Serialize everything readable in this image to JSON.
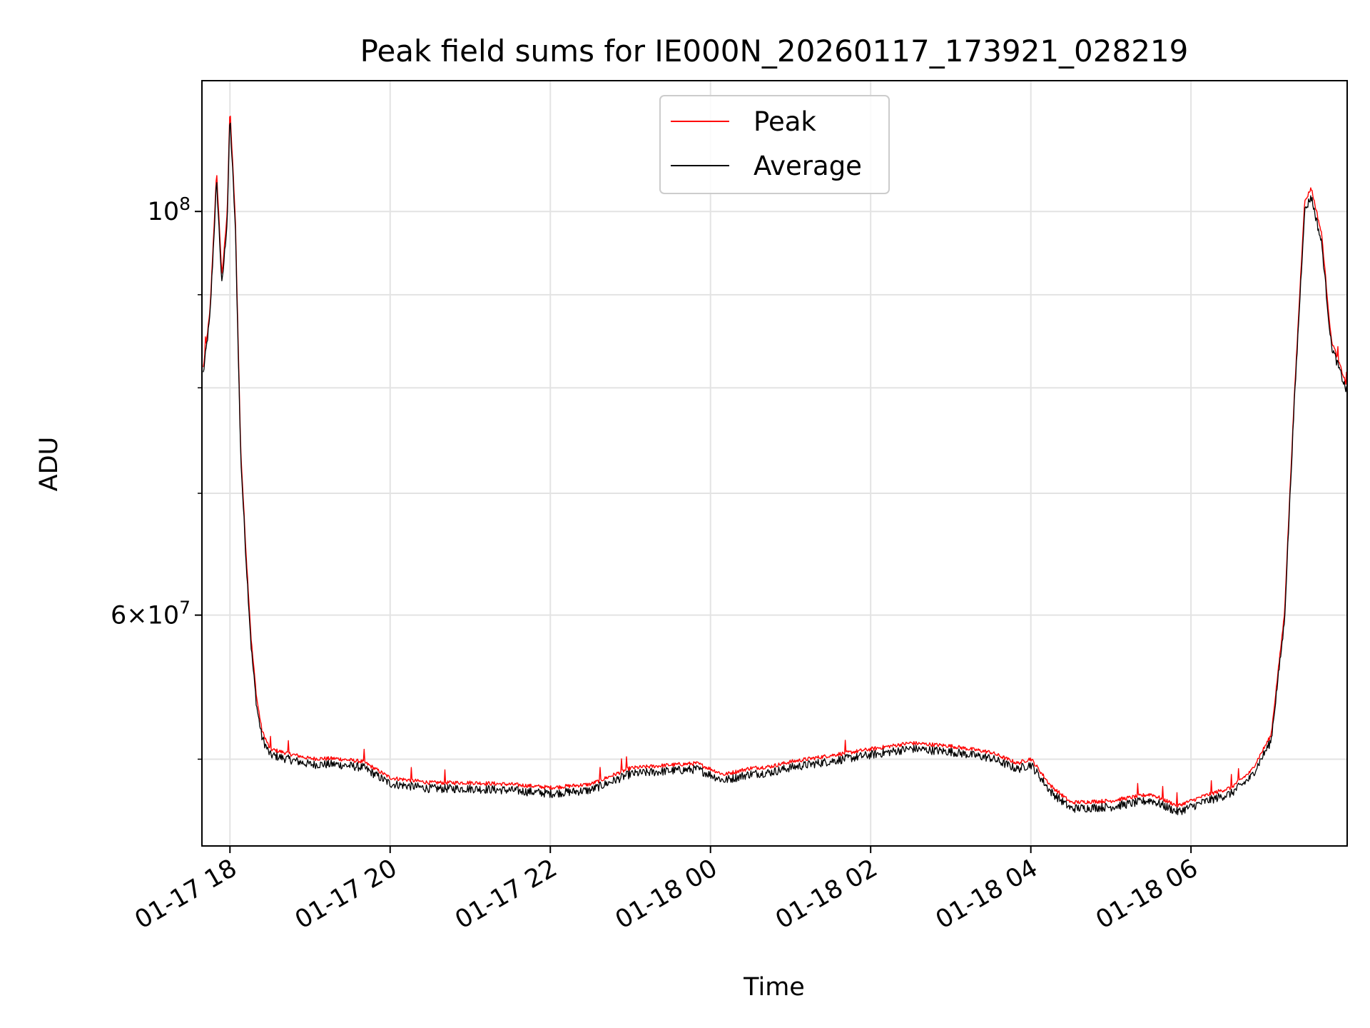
{
  "chart_data": {
    "type": "line",
    "title": "Peak field sums for IE000N_20260117_173921_028219",
    "xlabel": "Time",
    "ylabel": "ADU",
    "y_scale": "log",
    "xlim": [
      "2026-01-17 17:39",
      "2026-01-18 07:57"
    ],
    "ylim": [
      44800000,
      118000000
    ],
    "grid": true,
    "legend_position": "upper center",
    "x_ticks": [
      "01-17 18",
      "01-17 20",
      "01-17 22",
      "01-18 00",
      "01-18 02",
      "01-18 04",
      "01-18 06"
    ],
    "y_major_ticks": [
      {
        "value": 100000000,
        "base": "10",
        "exp": "8",
        "mantissa": ""
      },
      {
        "value": 60000000,
        "base": "10",
        "exp": "7",
        "mantissa": "6"
      }
    ],
    "y_minor_ticks": [
      50000000,
      70000000,
      80000000,
      90000000
    ],
    "x": [
      "2026-01-17 17:40",
      "2026-01-17 17:45",
      "2026-01-17 17:50",
      "2026-01-17 17:54",
      "2026-01-17 17:58",
      "2026-01-17 18:00",
      "2026-01-17 18:04",
      "2026-01-17 18:08",
      "2026-01-17 18:12",
      "2026-01-17 18:16",
      "2026-01-17 18:20",
      "2026-01-17 18:24",
      "2026-01-17 18:30",
      "2026-01-17 18:40",
      "2026-01-17 19:00",
      "2026-01-17 19:20",
      "2026-01-17 19:40",
      "2026-01-17 20:00",
      "2026-01-17 20:30",
      "2026-01-17 21:00",
      "2026-01-17 21:30",
      "2026-01-17 22:00",
      "2026-01-17 22:30",
      "2026-01-17 23:00",
      "2026-01-17 23:30",
      "2026-01-17 23:50",
      "2026-01-18 00:10",
      "2026-01-18 00:30",
      "2026-01-18 00:45",
      "2026-01-18 01:00",
      "2026-01-18 01:30",
      "2026-01-18 02:00",
      "2026-01-18 02:30",
      "2026-01-18 03:00",
      "2026-01-18 03:30",
      "2026-01-18 03:50",
      "2026-01-18 04:00",
      "2026-01-18 04:15",
      "2026-01-18 04:30",
      "2026-01-18 05:00",
      "2026-01-18 05:30",
      "2026-01-18 05:50",
      "2026-01-18 06:10",
      "2026-01-18 06:30",
      "2026-01-18 06:45",
      "2026-01-18 07:00",
      "2026-01-18 07:10",
      "2026-01-18 07:17",
      "2026-01-18 07:25",
      "2026-01-18 07:30",
      "2026-01-18 07:38",
      "2026-01-18 07:45",
      "2026-01-18 07:57"
    ],
    "series": [
      {
        "name": "Peak",
        "color": "#ff0000",
        "values": [
          82000000,
          88000000,
          105000000,
          92000000,
          100000000,
          114000000,
          99000000,
          74000000,
          65000000,
          58000000,
          54000000,
          51800000,
          50600000,
          50400000,
          50000000,
          50000000,
          49800000,
          48800000,
          48500000,
          48500000,
          48400000,
          48200000,
          48400000,
          49400000,
          49600000,
          49700000,
          49000000,
          49400000,
          49500000,
          49800000,
          50200000,
          50600000,
          51000000,
          50800000,
          50400000,
          49700000,
          50000000,
          48300000,
          47300000,
          47400000,
          47800000,
          47100000,
          47700000,
          48200000,
          49200000,
          51500000,
          60000000,
          78000000,
          101000000,
          103000000,
          97000000,
          85000000,
          80000000
        ]
      },
      {
        "name": "Average",
        "color": "#000000",
        "values": [
          81500000,
          87500000,
          104000000,
          91000000,
          99000000,
          113000000,
          98000000,
          73500000,
          64500000,
          57500000,
          53500000,
          51400000,
          50300000,
          50100000,
          49700000,
          49700000,
          49500000,
          48500000,
          48200000,
          48200000,
          48100000,
          47900000,
          48100000,
          49100000,
          49300000,
          49400000,
          48700000,
          49100000,
          49200000,
          49500000,
          49900000,
          50300000,
          50700000,
          50500000,
          50100000,
          49400000,
          49700000,
          48000000,
          47000000,
          47100000,
          47500000,
          46800000,
          47400000,
          47900000,
          48900000,
          51200000,
          59500000,
          77500000,
          100000000,
          102000000,
          96000000,
          84500000,
          79500000
        ]
      }
    ]
  }
}
